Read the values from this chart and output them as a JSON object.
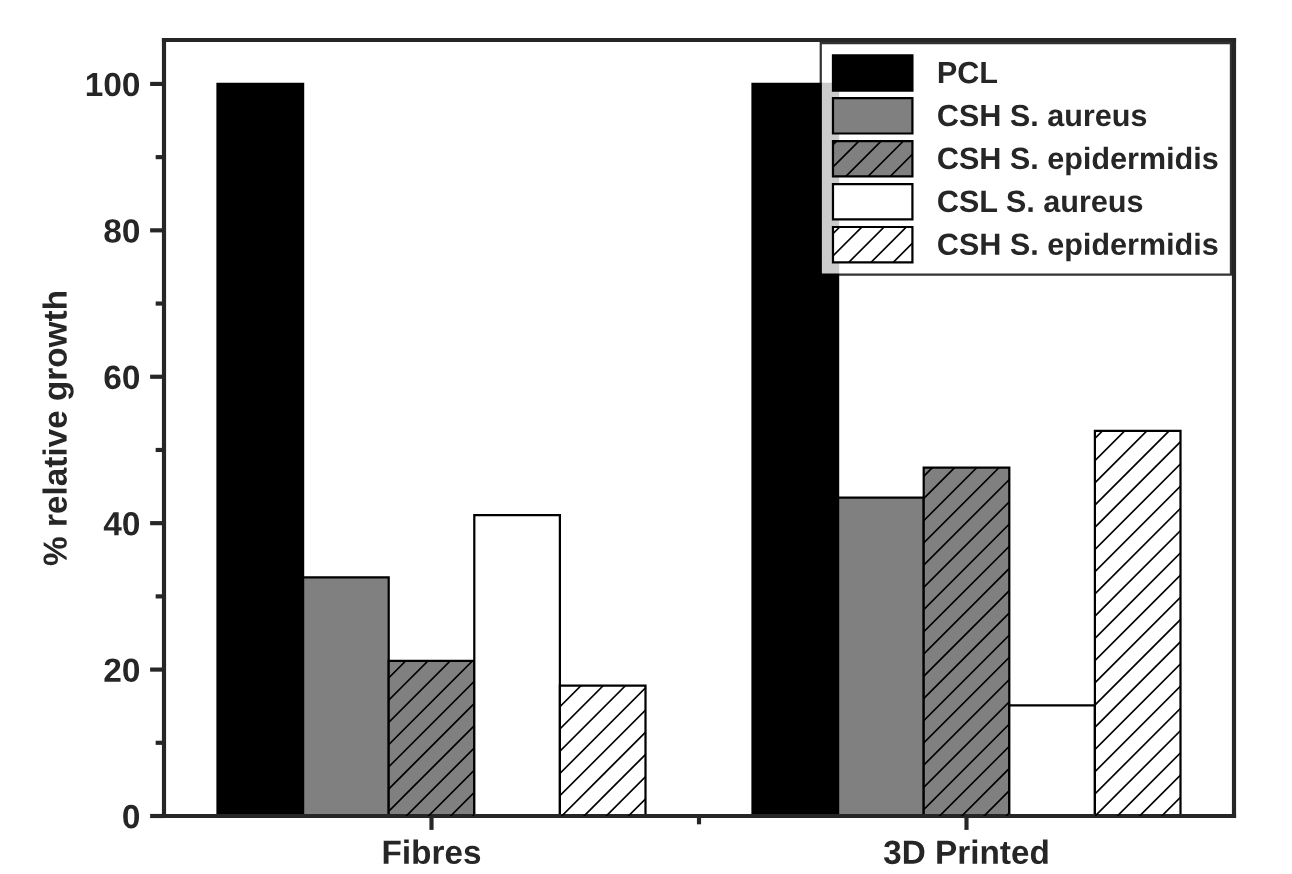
{
  "chart_data": {
    "type": "bar",
    "ylabel": "% relative growth",
    "categories": [
      "Fibres",
      "3D Printed"
    ],
    "series": [
      {
        "name": "PCL",
        "color": "#000000",
        "values": [
          100,
          100
        ]
      },
      {
        "name": "CSH S. aureus",
        "color": "#808080",
        "values": [
          32.6,
          43.5
        ]
      },
      {
        "name": "CSH S. epidermidis",
        "color": "#808080",
        "values": [
          21.2,
          47.6
        ]
      },
      {
        "name": "CSL S. aureus",
        "color": "#ffffff",
        "values": [
          41.1,
          15.1
        ]
      },
      {
        "name": "CSH S. epidermidis",
        "color": "#ffffff",
        "values": [
          17.8,
          52.6
        ]
      }
    ],
    "ylim": [
      0,
      106
    ],
    "yticks": [
      0,
      20,
      40,
      60,
      80,
      100
    ],
    "grid": false,
    "legend": "top right"
  }
}
